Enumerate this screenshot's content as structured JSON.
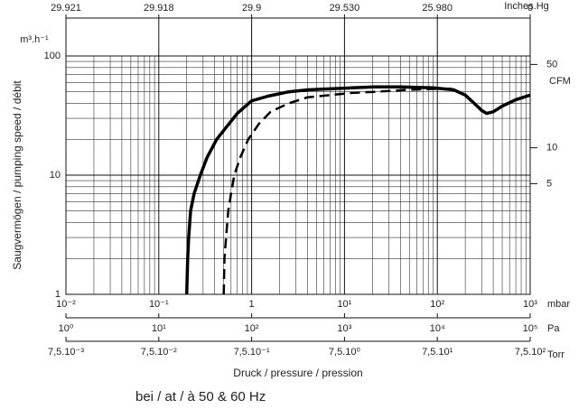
{
  "chart_data": {
    "type": "line",
    "y_label": "Saugvermögen / pumping speed / débit",
    "y_unit": "m³.h⁻¹",
    "x_label": "Druck / pressure / pression",
    "footnote": "bei / at / à 50 & 60 Hz",
    "log_x": true,
    "log_y": true,
    "grid": true,
    "minor_grid": true,
    "xlim": [
      0.01,
      1000
    ],
    "x_unit": "mbar",
    "xticks": [
      {
        "value": 0.01,
        "label": "10⁻²"
      },
      {
        "value": 0.1,
        "label": "10⁻¹"
      },
      1,
      {
        "value": 10,
        "label": "10¹"
      },
      {
        "value": 100,
        "label": "10²"
      },
      {
        "value": 1000,
        "label": "10³"
      }
    ],
    "ylim": [
      1,
      100
    ],
    "yticks": [
      1,
      10,
      100
    ],
    "top_axis": {
      "unit": "Inches.Hg",
      "ticks": [
        {
          "value": 0.01,
          "label": "29.921"
        },
        {
          "value": 0.1,
          "label": "29.918"
        },
        {
          "value": 1,
          "label": "29.9"
        },
        {
          "value": 10,
          "label": "29.530"
        },
        {
          "value": 100,
          "label": "25.980"
        },
        {
          "value": 1000,
          "label": "0"
        }
      ]
    },
    "pa_axis": {
      "unit": "Pa",
      "lim": [
        1,
        100000
      ],
      "ticks": [
        {
          "value": 1,
          "label": "10⁰"
        },
        {
          "value": 10,
          "label": "10¹"
        },
        {
          "value": 100,
          "label": "10²"
        },
        {
          "value": 1000,
          "label": "10³"
        },
        {
          "value": 10000,
          "label": "10⁴"
        },
        {
          "value": 100000,
          "label": "10⁵"
        }
      ]
    },
    "torr_axis": {
      "unit": "Torr",
      "lim": [
        0.0075,
        750
      ],
      "ticks": [
        {
          "value": 0.0075,
          "label": "7,5.10⁻³"
        },
        {
          "value": 0.075,
          "label": "7,5.10⁻²"
        },
        {
          "value": 0.75,
          "label": "7,5.10⁻¹"
        },
        {
          "value": 7.5,
          "label": "7,5.10⁰"
        },
        {
          "value": 75,
          "label": "7,5.10¹"
        },
        {
          "value": 750,
          "label": "7,5.10²"
        }
      ]
    },
    "y2_unit": "CFM",
    "y2lim": [
      0.589,
      58.9
    ],
    "y2ticks": [
      5,
      10,
      50
    ],
    "series": [
      {
        "color": "#000000",
        "dash": false,
        "x": [
          0.2,
          0.205,
          0.21,
          0.22,
          0.24,
          0.28,
          0.33,
          0.42,
          0.55,
          0.7,
          1,
          1.5,
          2.5,
          4,
          7,
          12,
          21,
          40,
          90,
          150,
          200,
          250,
          300,
          340,
          400,
          500,
          700,
          1000
        ],
        "values": [
          1,
          2,
          3,
          5,
          7,
          10,
          14,
          20,
          26,
          33,
          42,
          46,
          50,
          52,
          53,
          54,
          55,
          55,
          54,
          52,
          47,
          40,
          35,
          33,
          34,
          38,
          43,
          47
        ]
      },
      {
        "color": "#000000",
        "dash": true,
        "x": [
          0.5,
          0.51,
          0.53,
          0.56,
          0.6,
          0.65,
          0.75,
          0.92,
          1.2,
          1.6,
          2.5,
          4,
          7,
          12,
          21,
          46,
          100,
          150
        ],
        "values": [
          1,
          2,
          3,
          5,
          7,
          10,
          14,
          20,
          27,
          34,
          40,
          45,
          47,
          49,
          50,
          52,
          53,
          53
        ]
      }
    ]
  }
}
